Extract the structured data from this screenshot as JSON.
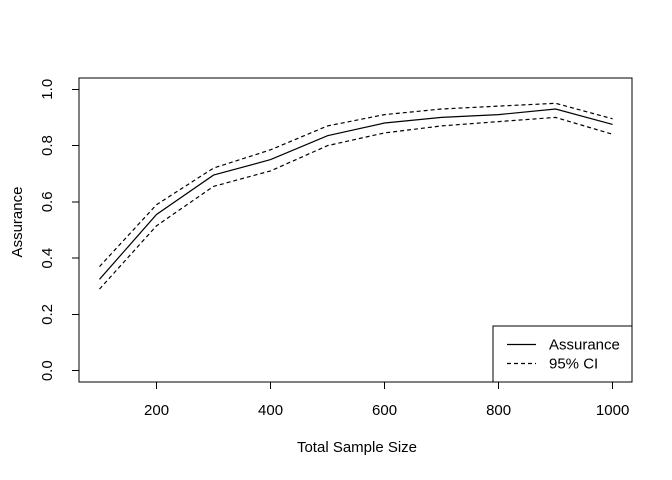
{
  "chart_data": {
    "type": "line",
    "title": "",
    "xlabel": "Total Sample Size",
    "ylabel": "Assurance",
    "x": [
      100,
      200,
      300,
      400,
      500,
      600,
      700,
      800,
      900,
      1000
    ],
    "series": [
      {
        "name": "Assurance",
        "style": "solid",
        "values": [
          0.325,
          0.555,
          0.695,
          0.75,
          0.835,
          0.88,
          0.9,
          0.91,
          0.93,
          0.875
        ]
      },
      {
        "name": "95% CI upper",
        "style": "dashed",
        "values": [
          0.37,
          0.59,
          0.72,
          0.785,
          0.87,
          0.91,
          0.93,
          0.94,
          0.95,
          0.895
        ]
      },
      {
        "name": "95% CI lower",
        "style": "dashed",
        "values": [
          0.29,
          0.515,
          0.655,
          0.71,
          0.8,
          0.845,
          0.87,
          0.885,
          0.9,
          0.84
        ]
      }
    ],
    "xticks": {
      "values": [
        200,
        400,
        600,
        800,
        1000
      ],
      "labels": [
        "200",
        "400",
        "600",
        "800",
        "1000"
      ]
    },
    "yticks": {
      "values": [
        0.0,
        0.2,
        0.4,
        0.6,
        0.8,
        1.0
      ],
      "labels": [
        "0.0",
        "0.2",
        "0.4",
        "0.6",
        "0.8",
        "1.0"
      ]
    },
    "xlim": [
      64,
      1034
    ],
    "ylim": [
      -0.04,
      1.04
    ],
    "grid": "off",
    "line_color": "#000000",
    "background": "#ffffff",
    "legend": {
      "position": "bottomright",
      "entries": [
        {
          "label": "Assurance",
          "style": "solid"
        },
        {
          "label": "95% CI",
          "style": "dashed"
        }
      ]
    }
  }
}
